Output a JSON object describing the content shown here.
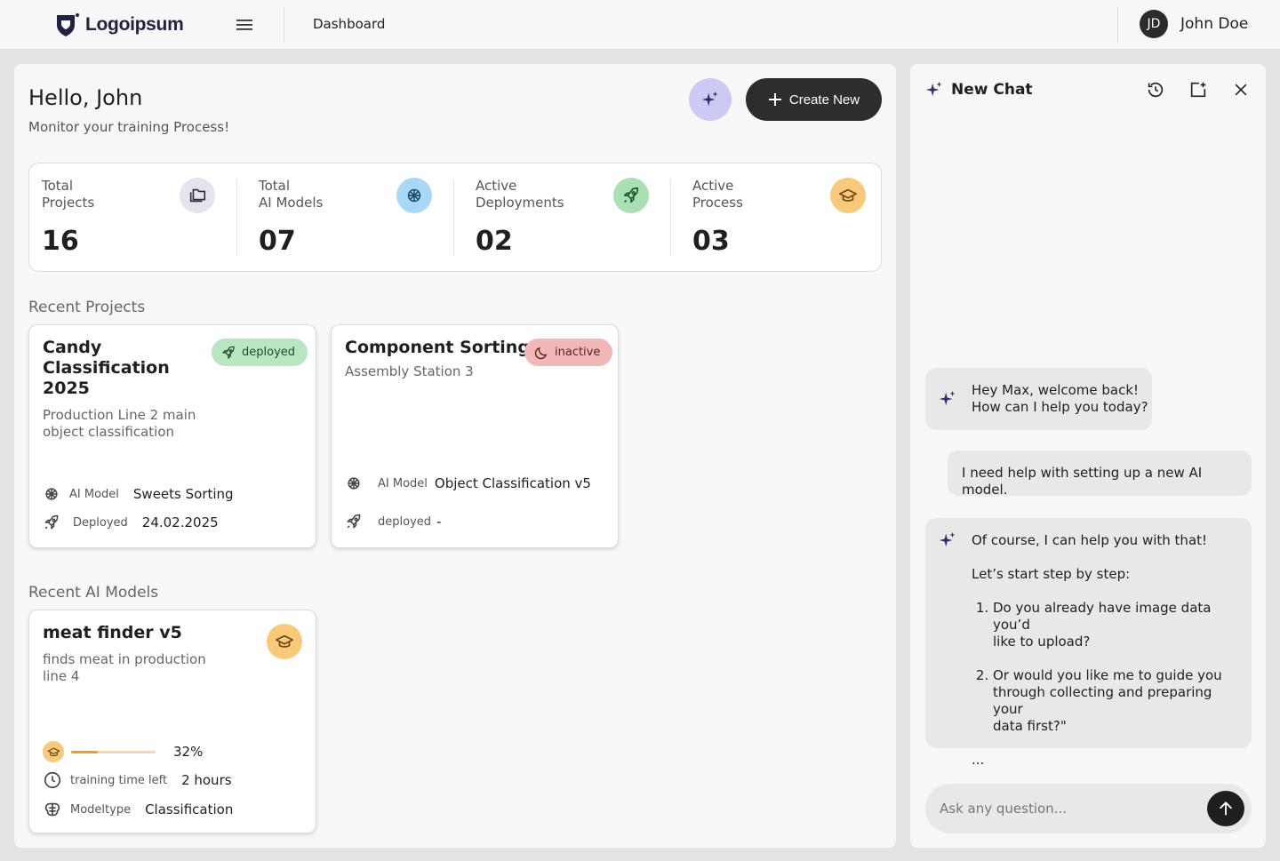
{
  "header": {
    "logo_text": "Logoipsum",
    "breadcrumb": "Dashboard",
    "user": {
      "initials": "JD",
      "name": "John Doe"
    }
  },
  "main": {
    "greeting": "Hello, John",
    "subtitle": "Monitor your training Process!",
    "create_label": "Create New",
    "stats": [
      {
        "label_line1": "Total",
        "label_line2": "Projects",
        "value": "16",
        "icon": "folder-icon",
        "icon_bg": "#e4e4ee",
        "icon_color": "#2f2f3a"
      },
      {
        "label_line1": "Total",
        "label_line2": "AI Models",
        "value": "07",
        "icon": "brain-icon",
        "icon_bg": "#a8d8f5",
        "icon_color": "#1f4f6b"
      },
      {
        "label_line1": "Active",
        "label_line2": "Deployments",
        "value": "02",
        "icon": "rocket-icon",
        "icon_bg": "#a8e0b3",
        "icon_color": "#1f5a2b"
      },
      {
        "label_line1": "Active",
        "label_line2": "Process",
        "value": "03",
        "icon": "graduation-cap-icon",
        "icon_bg": "#f8c97a",
        "icon_color": "#6b4a10"
      }
    ],
    "recent_projects_title": "Recent Projects",
    "projects": [
      {
        "title_lines": [
          "Candy",
          "Classification",
          "2025"
        ],
        "desc_lines": [
          "Production Line 2 main",
          "object classification"
        ],
        "status": "deployed",
        "status_bg": "#b8e6c0",
        "status_color": "#1f4d28",
        "model_key": "AI Model",
        "model_value": "Sweets Sorting",
        "deployed_key": "Deployed",
        "deployed_value": "24.02.2025"
      },
      {
        "title_lines": [
          "Component Sorting"
        ],
        "desc_lines": [
          "Assembly Station 3"
        ],
        "status": "inactive",
        "status_bg": "#f2b8b8",
        "status_color": "#5a1f1f",
        "model_key": "AI Model",
        "model_value": "Object Classification v5",
        "deployed_key": "deployed",
        "deployed_value": "-"
      }
    ],
    "recent_models_title": "Recent AI Models",
    "models": [
      {
        "title": "meat finder v5",
        "desc_lines": [
          "finds meat in production",
          "line 4"
        ],
        "progress": 32,
        "progress_label": "32%",
        "time_key": "training time left",
        "time_value": "2 hours",
        "type_key": "Modeltype",
        "type_value": "Classification"
      }
    ]
  },
  "chat": {
    "title": "New Chat",
    "messages": [
      {
        "role": "assistant",
        "lines": [
          "Hey Max, welcome back!",
          "How can I help you today?"
        ]
      },
      {
        "role": "user",
        "text": "I need help with setting up a new AI model."
      },
      {
        "role": "assistant",
        "intro": "Of course, I can help you with that!",
        "lead": "Let’s start step by step:",
        "steps": [
          [
            "Do you already have image data you’d",
            "like to upload?"
          ],
          [
            "Or would you like me to guide you",
            "through collecting and preparing your",
            "data first?\""
          ]
        ],
        "ellipsis": "..."
      }
    ],
    "input_placeholder": "Ask any question..."
  },
  "colors": {
    "accent_dark": "#2d2d2d",
    "ai_button_bg": "#ccc9f5",
    "progress_fill": "#f0a021"
  }
}
